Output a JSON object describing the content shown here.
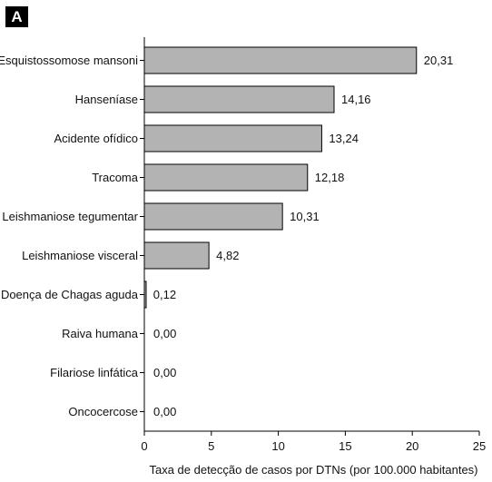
{
  "panel_label": "A",
  "chart_data": {
    "type": "bar",
    "orientation": "horizontal",
    "categories": [
      "Esquistossomose mansoni",
      "Hanseníase",
      "Acidente ofídico",
      "Tracoma",
      "Leishmaniose tegumentar",
      "Leishmaniose visceral",
      "Doença de Chagas aguda",
      "Raiva humana",
      "Filariose linfática",
      "Oncocercose"
    ],
    "values": [
      20.31,
      14.16,
      13.24,
      12.18,
      10.31,
      4.82,
      0.12,
      0.0,
      0.0,
      0.0
    ],
    "value_labels": [
      "20,31",
      "14,16",
      "13,24",
      "12,18",
      "10,31",
      "4,82",
      "0,12",
      "0,00",
      "0,00",
      "0,00"
    ],
    "title": "",
    "xlabel": "Taxa de detecção de casos por DTNs (por 100.000 habitantes)",
    "ylabel": "",
    "xlim": [
      0,
      25
    ],
    "xticks": [
      0,
      5,
      10,
      15,
      20,
      25
    ],
    "grid": false,
    "legend": "none",
    "bar_color": "#b3b3b3",
    "bar_edge_color": "#000000"
  }
}
